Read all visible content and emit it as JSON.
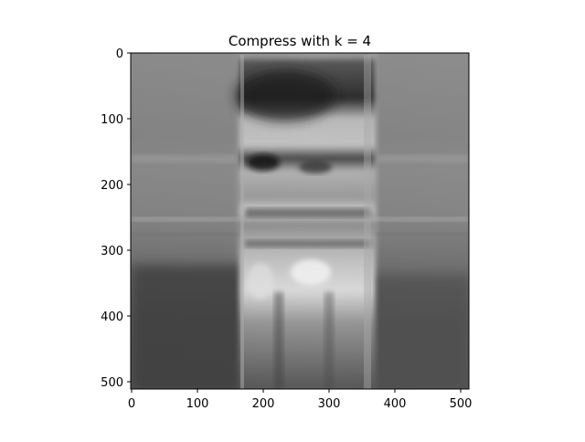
{
  "figure": {
    "title": "Compress with k = 4"
  },
  "axes": {
    "x_ticks": [
      "0",
      "100",
      "200",
      "300",
      "400",
      "500"
    ],
    "y_ticks": [
      "0",
      "100",
      "200",
      "300",
      "400",
      "500"
    ],
    "x_range": [
      0,
      512
    ],
    "y_range": [
      0,
      512
    ],
    "y_inverted": true
  },
  "image": {
    "description_colormap": "gray",
    "shape": [
      512,
      512
    ],
    "compression_rank_k": 4
  }
}
